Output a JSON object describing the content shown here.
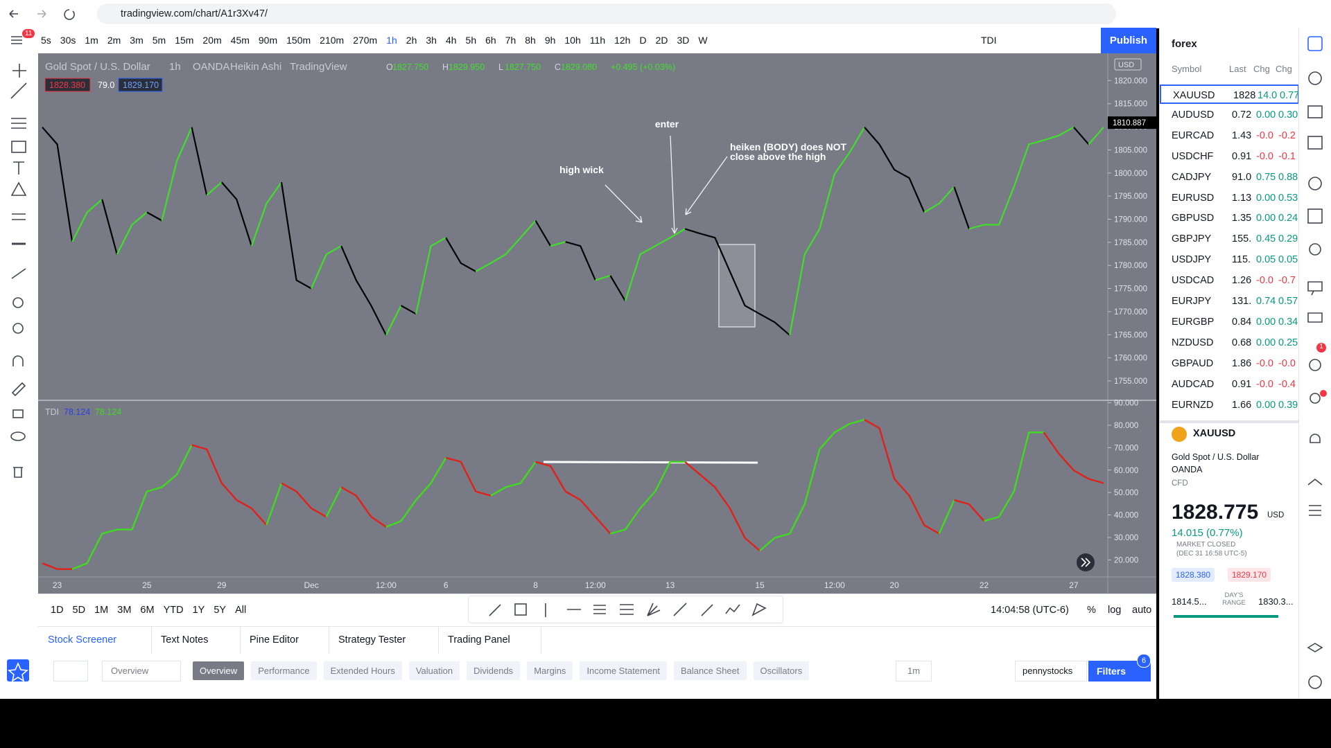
{
  "browser": {
    "url": "tradingview.com/chart/A1r3Xv47/"
  },
  "top_toolbar": {
    "menu_badge": "11",
    "intervals": [
      "5s",
      "30s",
      "1m",
      "2m",
      "3m",
      "5m",
      "15m",
      "20m",
      "45m",
      "90m",
      "150m",
      "210m",
      "270m",
      "1h",
      "2h",
      "3h",
      "4h",
      "5h",
      "6h",
      "7h",
      "8h",
      "9h",
      "10h",
      "11h",
      "12h",
      "D",
      "2D",
      "3D",
      "W"
    ],
    "active_interval": "1h",
    "indicator": "TDI",
    "publish": "Publish"
  },
  "chart_data": [
    {
      "type": "line",
      "title": "Gold Spot / U.S. Dollar",
      "interval": "1h",
      "exchange": "OANDA",
      "style": "Heikin Ashi",
      "source": "TradingView",
      "ohlc": [
        {
          "key": "O",
          "value": "1827.750"
        },
        {
          "key": "H",
          "value": "1829.950"
        },
        {
          "key": "L",
          "value": "1827.750"
        },
        {
          "key": "C",
          "value": "1829.080"
        }
      ],
      "change": "+0.495 (+0.03%)",
      "price_tags": [
        "1828.380",
        "79.0",
        "1829.170"
      ],
      "currency": "USD",
      "last_price": {
        "value": 1810.887,
        "label": "1810.887"
      },
      "values": [
        1809.9,
        1806.2,
        1785.1,
        1791.5,
        1794.3,
        1782.4,
        1788.8,
        1791.5,
        1789.7,
        1802.6,
        1809.9,
        1795.2,
        1798.0,
        1794.3,
        1784.2,
        1793.4,
        1798.0,
        1776.8,
        1775.0,
        1782.4,
        1784.2,
        1776.8,
        1771.3,
        1764.9,
        1771.3,
        1769.5,
        1784.2,
        1786.0,
        1780.5,
        1778.7,
        1780.5,
        1782.4,
        1786.0,
        1789.7,
        1784.2,
        1785.1,
        1784.2,
        1776.8,
        1777.8,
        1772.3,
        1782.4,
        1784.2,
        1786.0,
        1787.9,
        1786.9,
        1786.0,
        1778.7,
        1771.3,
        1769.5,
        1767.7,
        1764.9,
        1782.4,
        1787.9,
        1799.8,
        1804.4,
        1809.9,
        1806.2,
        1800.7,
        1798.9,
        1791.5,
        1793.4,
        1797.0,
        1787.9,
        1788.8,
        1788.8,
        1797.0,
        1806.2,
        1807.1,
        1808.1,
        1809.9,
        1806.2,
        1809.9
      ],
      "up_color": "#3fe02a",
      "down_color": "#000000",
      "ylim": [
        1750.8,
        1825.9
      ],
      "yticks": [
        {
          "value": 1820,
          "label": "1820.000"
        },
        {
          "value": 1815,
          "label": "1815.000"
        },
        {
          "value": 1810,
          "label": "1810.000"
        },
        {
          "value": 1805,
          "label": "1805.000"
        },
        {
          "value": 1800,
          "label": "1800.000"
        },
        {
          "value": 1795,
          "label": "1795.000"
        },
        {
          "value": 1790,
          "label": "1790.000"
        },
        {
          "value": 1785,
          "label": "1785.000"
        },
        {
          "value": 1780,
          "label": "1780.000"
        },
        {
          "value": 1775,
          "label": "1775.000"
        },
        {
          "value": 1770,
          "label": "1770.000"
        },
        {
          "value": 1765,
          "label": "1765.000"
        },
        {
          "value": 1760,
          "label": "1760.000"
        },
        {
          "value": 1755,
          "label": "1755.000"
        }
      ],
      "annotations": [
        "high wick",
        "enter",
        "heiken (BODY) does NOT",
        "close above the high"
      ]
    },
    {
      "type": "line",
      "title": "TDI",
      "legend_values": [
        "78.124",
        "78.124"
      ],
      "categories": [
        null,
        "23",
        null,
        null,
        null,
        null,
        null,
        "25",
        null,
        null,
        null,
        null,
        "29",
        null,
        null,
        null,
        null,
        null,
        "Dec",
        null,
        null,
        null,
        null,
        "12:00",
        null,
        null,
        null,
        "6",
        null,
        null,
        null,
        null,
        null,
        "8",
        null,
        null,
        null,
        "12:00",
        null,
        null,
        null,
        null,
        "13",
        null,
        null,
        null,
        null,
        null,
        "15",
        null,
        null,
        null,
        null,
        "12:00",
        null,
        null,
        null,
        "20",
        null,
        null,
        null,
        null,
        null,
        "22",
        null,
        null,
        null,
        null,
        null,
        "27",
        null,
        null
      ],
      "values": [
        18.5,
        15.9,
        15.9,
        18.5,
        31.7,
        33.5,
        33.5,
        50.5,
        52.4,
        58.0,
        71.2,
        69.3,
        54.2,
        46.7,
        43.0,
        35.5,
        54.2,
        50.5,
        43.0,
        39.2,
        52.4,
        48.6,
        39.2,
        34.7,
        37.3,
        46.7,
        54.2,
        65.5,
        63.7,
        50.5,
        48.6,
        52.4,
        54.2,
        63.7,
        61.8,
        50.5,
        46.7,
        39.2,
        31.7,
        33.5,
        43.0,
        50.5,
        63.7,
        63.7,
        58.0,
        52.4,
        43.0,
        29.8,
        24.1,
        29.8,
        31.7,
        44.8,
        69.3,
        76.8,
        80.6,
        82.5,
        78.7,
        56.1,
        48.6,
        35.5,
        31.7,
        46.7,
        44.8,
        37.3,
        39.2,
        50.5,
        76.8,
        76.8,
        67.4,
        59.9,
        56.1,
        54.2
      ],
      "up_color": "#3fdc1e",
      "down_color": "#e0211a",
      "ylim": [
        12.4,
        91.1
      ],
      "yticks": [
        {
          "value": 90,
          "label": "90.000"
        },
        {
          "value": 80,
          "label": "80.000"
        },
        {
          "value": 70,
          "label": "70.000"
        },
        {
          "value": 60,
          "label": "60.000"
        },
        {
          "value": 50,
          "label": "50.000"
        },
        {
          "value": 40,
          "label": "40.000"
        },
        {
          "value": 30,
          "label": "30.000"
        },
        {
          "value": 20,
          "label": "20.000"
        }
      ]
    }
  ],
  "bottom_toolbar": {
    "ranges": [
      "1D",
      "5D",
      "1M",
      "3M",
      "6M",
      "YTD",
      "1Y",
      "5Y",
      "All"
    ],
    "time": "14:04:58 (UTC-6)",
    "percent": "%",
    "log": "log",
    "auto": "auto"
  },
  "panel_tabs": {
    "tabs": [
      "Stock Screener",
      "Text Notes",
      "Pine Editor",
      "Strategy Tester",
      "Trading Panel"
    ],
    "active": "Stock Screener"
  },
  "screener": {
    "view_select": "Overview",
    "tabs": [
      "Overview",
      "Performance",
      "Extended Hours",
      "Valuation",
      "Dividends",
      "Margins",
      "Income Statement",
      "Balance Sheet",
      "Oscillators"
    ],
    "active": "Overview",
    "interval": "1m",
    "list": "pennystocks",
    "filters": "Filters",
    "filters_badge": "6"
  },
  "watchlist": {
    "title": "forex",
    "headers": [
      "Symbol",
      "Last",
      "Chg",
      "Chg"
    ],
    "selected": "XAUUSD",
    "rows": [
      [
        "XAUUSD",
        "1828",
        "14.0",
        "0.77"
      ],
      [
        "AUDUSD",
        "0.72",
        "0.00",
        "0.30"
      ],
      [
        "EURCAD",
        "1.43",
        "-0.0",
        "-0.2"
      ],
      [
        "USDCHF",
        "0.91",
        "-0.0",
        "-0.1"
      ],
      [
        "CADJPY",
        "91.0",
        "0.75",
        "0.88"
      ],
      [
        "EURUSD",
        "1.13",
        "0.00",
        "0.53"
      ],
      [
        "GBPUSD",
        "1.35",
        "0.00",
        "0.24"
      ],
      [
        "GBPJPY",
        "155.",
        "0.45",
        "0.29"
      ],
      [
        "USDJPY",
        "115.",
        "0.05",
        "0.05"
      ],
      [
        "USDCAD",
        "1.26",
        "-0.0",
        "-0.7"
      ],
      [
        "EURJPY",
        "131.",
        "0.74",
        "0.57"
      ],
      [
        "EURGBP",
        "0.84",
        "0.00",
        "0.34"
      ],
      [
        "NZDUSD",
        "0.68",
        "0.00",
        "0.25"
      ],
      [
        "GBPAUD",
        "1.86",
        "-0.0",
        "-0.0"
      ],
      [
        "AUDCAD",
        "0.91",
        "-0.0",
        "-0.4"
      ],
      [
        "EURNZD",
        "1.66",
        "0.00",
        "0.39"
      ]
    ]
  },
  "details": {
    "symbol": "XAUUSD",
    "name": "Gold Spot / U.S. Dollar",
    "exchange": "OANDA",
    "kind": "CFD",
    "price": "1828.775",
    "currency": "USD",
    "change": "14.015 (0.77%)",
    "status": "MARKET CLOSED",
    "status_time": "(DEC 31 16:58 UTC-5)",
    "bid": "1828.380",
    "ask": "1829.170",
    "range_low": "1814.5...",
    "range_label": "DAY'S RANGE",
    "range_high": "1830.3..."
  },
  "right_bar": {
    "alert_badge": "1"
  }
}
